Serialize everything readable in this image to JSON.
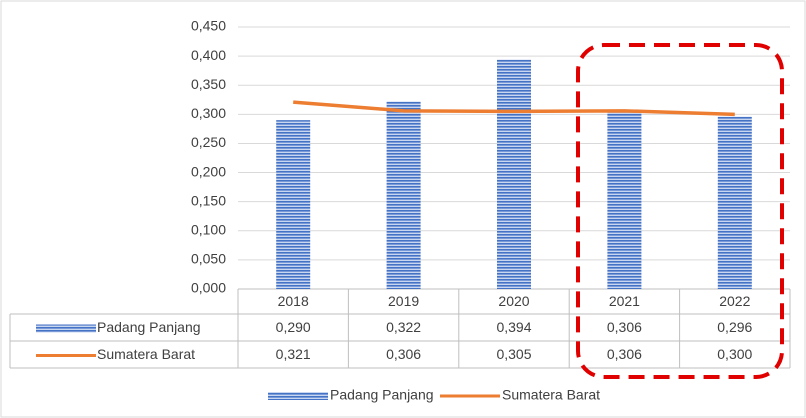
{
  "chart_data": {
    "type": "bar_line_table",
    "categories": [
      "2018",
      "2019",
      "2020",
      "2021",
      "2022"
    ],
    "series": [
      {
        "name": "Padang Panjang",
        "type": "bar",
        "color": "#4472c4",
        "values": [
          0.29,
          0.322,
          0.394,
          0.306,
          0.296
        ],
        "value_labels": [
          "0,290",
          "0,322",
          "0,394",
          "0,306",
          "0,296"
        ]
      },
      {
        "name": "Sumatera Barat",
        "type": "line",
        "color": "#ed7d31",
        "values": [
          0.321,
          0.306,
          0.305,
          0.306,
          0.3
        ],
        "value_labels": [
          "0,321",
          "0,306",
          "0,305",
          "0,306",
          "0,300"
        ]
      }
    ],
    "ylim": [
      0,
      0.45
    ],
    "yticks": [
      {
        "value": 0,
        "label": "0,000"
      },
      {
        "value": 0.05,
        "label": "0,050"
      },
      {
        "value": 0.1,
        "label": "0,100"
      },
      {
        "value": 0.15,
        "label": "0,150"
      },
      {
        "value": 0.2,
        "label": "0,200"
      },
      {
        "value": 0.25,
        "label": "0,250"
      },
      {
        "value": 0.3,
        "label": "0,300"
      },
      {
        "value": 0.35,
        "label": "0,350"
      },
      {
        "value": 0.4,
        "label": "0,400"
      },
      {
        "value": 0.45,
        "label": "0,450"
      }
    ],
    "grid": true
  }
}
